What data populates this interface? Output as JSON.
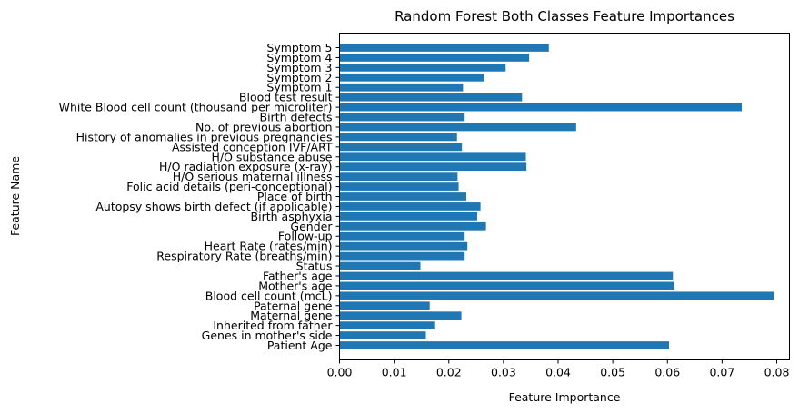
{
  "chart_data": {
    "type": "bar",
    "orientation": "horizontal",
    "title": "Random Forest Both Classes Feature Importances",
    "xlabel": "Feature Importance",
    "ylabel": "Feature Name",
    "xlim": [
      0,
      0.082
    ],
    "xticks": [
      0.0,
      0.01,
      0.02,
      0.03,
      0.04,
      0.05,
      0.06,
      0.07,
      0.08
    ],
    "xtick_labels": [
      "0.00",
      "0.01",
      "0.02",
      "0.03",
      "0.04",
      "0.05",
      "0.06",
      "0.07",
      "0.08"
    ],
    "grid": false,
    "bar_color": "#1f77b4",
    "categories": [
      "Patient Age",
      "Genes in mother's side",
      "Inherited from father",
      "Maternal gene",
      "Paternal gene",
      "Blood cell count (mcL)",
      "Mother's age",
      "Father's age",
      "Status",
      "Respiratory Rate (breaths/min)",
      "Heart Rate (rates/min)",
      "Follow-up",
      "Gender",
      "Birth asphyxia",
      "Autopsy shows birth defect (if applicable)",
      "Place of birth",
      "Folic acid details (peri-conceptional)",
      "H/O serious maternal illness",
      "H/O radiation exposure (x-ray)",
      "H/O substance abuse",
      "Assisted conception IVF/ART",
      "History of anomalies in previous pregnancies",
      "No. of previous abortion",
      "Birth defects",
      "White Blood cell count (thousand per microliter)",
      "Blood test result",
      "Symptom 1",
      "Symptom 2",
      "Symptom 3",
      "Symptom 4",
      "Symptom 5"
    ],
    "values": [
      0.0603,
      0.0158,
      0.0175,
      0.0223,
      0.0165,
      0.0795,
      0.0613,
      0.061,
      0.0148,
      0.0229,
      0.0234,
      0.0229,
      0.0268,
      0.0252,
      0.0258,
      0.0232,
      0.0218,
      0.0216,
      0.0342,
      0.0341,
      0.0224,
      0.0215,
      0.0433,
      0.0229,
      0.0736,
      0.0334,
      0.0226,
      0.0265,
      0.0304,
      0.0347,
      0.0383
    ]
  }
}
